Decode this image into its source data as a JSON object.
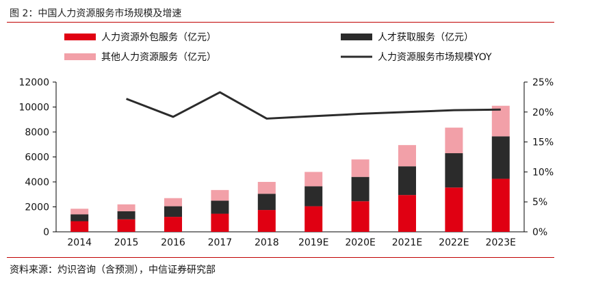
{
  "figure_title": "图 2：中国人力资源服务市场规模及增速",
  "source_note": "资料来源：灼识咨询（含预测），中信证券研究部",
  "colors": {
    "rule": "#c00000",
    "outsourcing": "#e00012",
    "talent": "#2b2b2b",
    "other": "#f2a0a8",
    "yoy_line": "#2b2b2b"
  },
  "legend": {
    "outsourcing": "人力资源外包服务（亿元）",
    "talent": "人才获取服务（亿元）",
    "other": "其他人力资源服务（亿元）",
    "yoy": "人力资源服务市场规模YOY"
  },
  "chart_data": {
    "type": "bar",
    "stacked": true,
    "categories": [
      "2014",
      "2015",
      "2016",
      "2017",
      "2018",
      "2019E",
      "2020E",
      "2021E",
      "2022E",
      "2023E"
    ],
    "series": [
      {
        "name": "人力资源外包服务（亿元）",
        "values": [
          850,
          1000,
          1200,
          1450,
          1750,
          2050,
          2450,
          2950,
          3550,
          4250
        ]
      },
      {
        "name": "人才获取服务（亿元）",
        "values": [
          550,
          650,
          850,
          1050,
          1300,
          1600,
          1950,
          2300,
          2750,
          3400
        ]
      },
      {
        "name": "其他人力资源服务（亿元）",
        "values": [
          450,
          550,
          650,
          850,
          950,
          1150,
          1400,
          1700,
          2050,
          2450
        ]
      }
    ],
    "line_series": {
      "name": "人力资源服务市场规模YOY",
      "axis": "right",
      "values": [
        null,
        22.2,
        19.2,
        23.3,
        18.9,
        19.3,
        19.7,
        20.0,
        20.3,
        20.4
      ]
    },
    "y_left": {
      "min": 0,
      "max": 12000,
      "ticks": [
        "0",
        "2000",
        "4000",
        "6000",
        "8000",
        "10000",
        "12000"
      ]
    },
    "y_right": {
      "min": 0,
      "max": 25,
      "ticks": [
        "0%",
        "5%",
        "10%",
        "15%",
        "20%",
        "25%"
      ]
    },
    "legend_position": "top"
  }
}
